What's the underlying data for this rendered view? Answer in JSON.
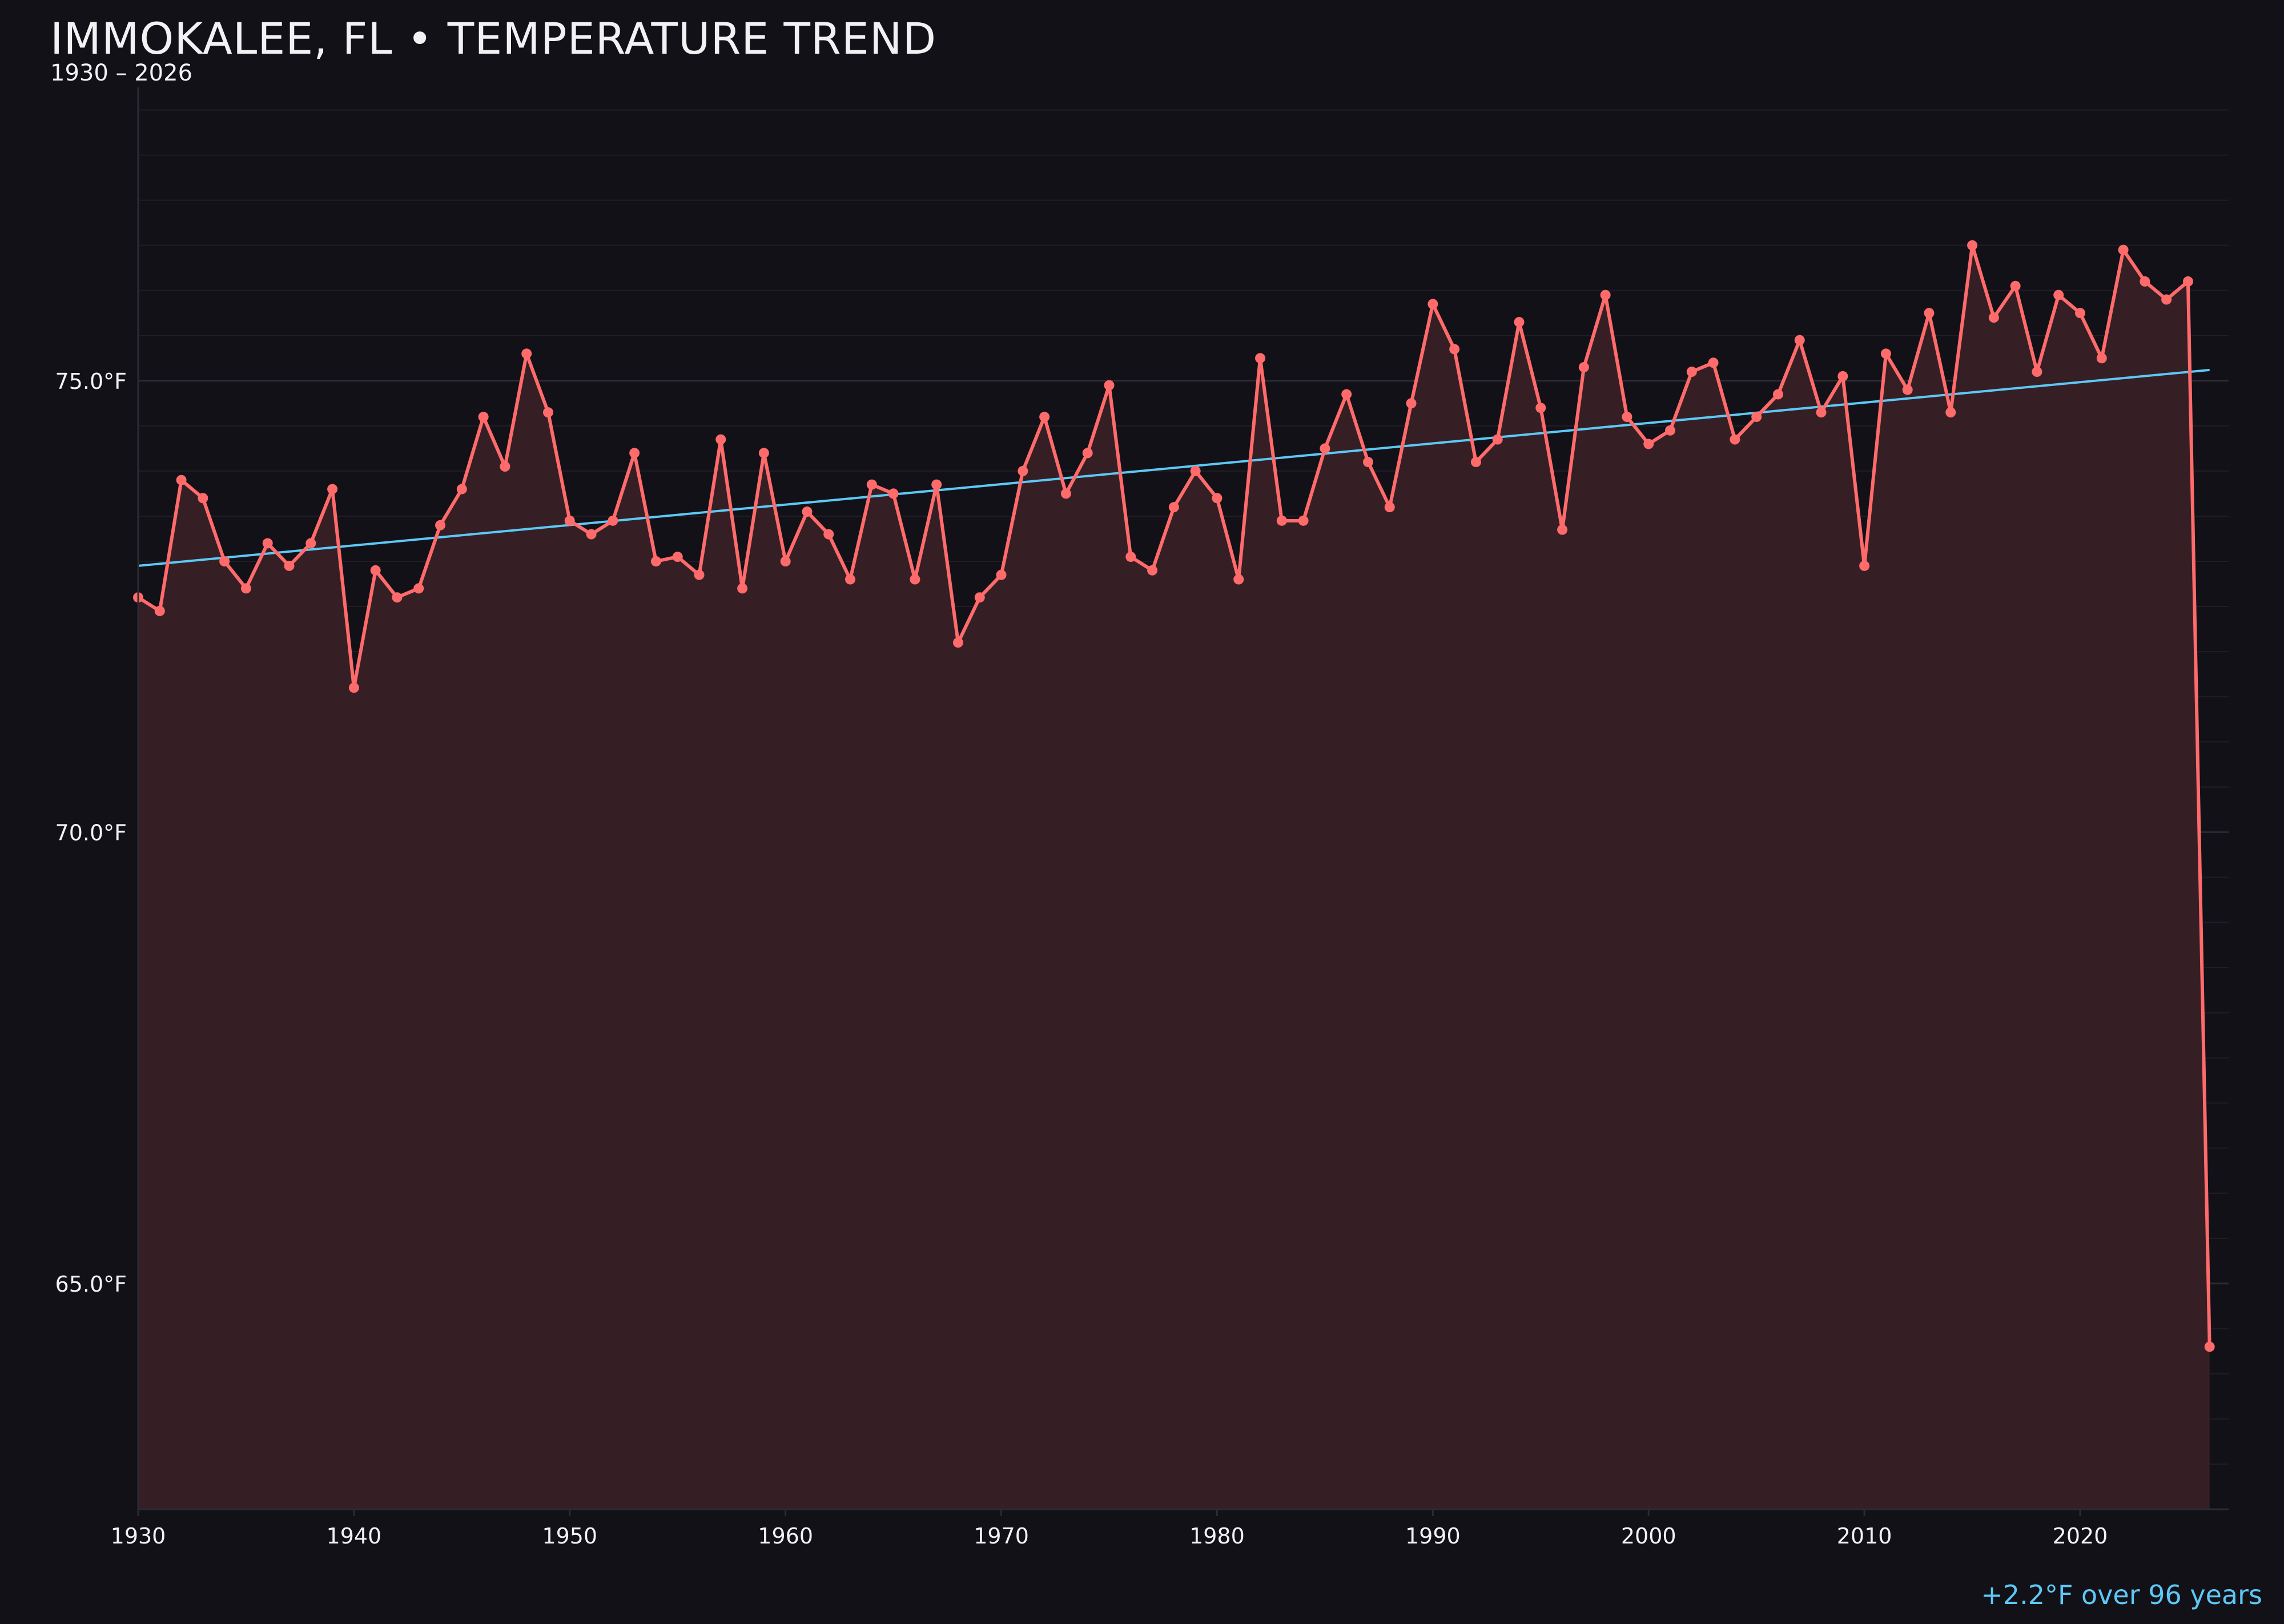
{
  "header": {
    "title": "IMMOKALEE, FL • TEMPERATURE TREND",
    "subtitle": "1930 – 2026"
  },
  "annotation": "+2.2°F over 96 years",
  "colors": {
    "background": "#121118",
    "series": "#ff6b6b",
    "fill": "#351f25",
    "trend": "#5ec8f5",
    "grid": "#2a242b",
    "text": "#f2f2f5"
  },
  "chart_data": {
    "type": "line",
    "title": "IMMOKALEE, FL • TEMPERATURE TREND",
    "subtitle": "1930 – 2026",
    "xlabel": "",
    "ylabel": "",
    "xlim": [
      1930,
      2027
    ],
    "ylim": [
      62.5,
      78.25
    ],
    "x_ticks": [
      1930,
      1940,
      1950,
      1960,
      1970,
      1980,
      1990,
      2000,
      2010,
      2020
    ],
    "x_tick_labels": [
      "1930",
      "1940",
      "1950",
      "1960",
      "1970",
      "1980",
      "1990",
      "2000",
      "2010",
      "2020"
    ],
    "y_ticks": [
      65,
      70,
      75
    ],
    "y_tick_labels": [
      "65.0°F",
      "70.0°F",
      "75.0°F"
    ],
    "grid": "horizontal, minor every 0.5°F",
    "area_fill": true,
    "x": [
      1930,
      1931,
      1932,
      1933,
      1934,
      1935,
      1936,
      1937,
      1938,
      1939,
      1940,
      1941,
      1942,
      1943,
      1944,
      1945,
      1946,
      1947,
      1948,
      1949,
      1950,
      1951,
      1952,
      1953,
      1954,
      1955,
      1956,
      1957,
      1958,
      1959,
      1960,
      1961,
      1962,
      1963,
      1964,
      1965,
      1966,
      1967,
      1968,
      1969,
      1970,
      1971,
      1972,
      1973,
      1974,
      1975,
      1976,
      1977,
      1978,
      1979,
      1980,
      1981,
      1982,
      1983,
      1984,
      1985,
      1986,
      1987,
      1988,
      1989,
      1990,
      1991,
      1992,
      1993,
      1994,
      1995,
      1996,
      1997,
      1998,
      1999,
      2000,
      2001,
      2002,
      2003,
      2004,
      2005,
      2006,
      2007,
      2008,
      2009,
      2010,
      2011,
      2012,
      2013,
      2014,
      2015,
      2016,
      2017,
      2018,
      2019,
      2020,
      2021,
      2022,
      2023,
      2024,
      2025,
      2026
    ],
    "values": [
      72.6,
      72.45,
      73.9,
      73.7,
      73.0,
      72.7,
      73.2,
      72.95,
      73.2,
      73.8,
      71.6,
      72.9,
      72.6,
      72.7,
      73.4,
      73.8,
      74.6,
      74.05,
      75.3,
      74.65,
      73.45,
      73.3,
      73.45,
      74.2,
      73.0,
      73.05,
      72.85,
      74.35,
      72.7,
      74.2,
      73.0,
      73.55,
      73.3,
      72.8,
      73.85,
      73.75,
      72.8,
      73.85,
      72.1,
      72.6,
      72.85,
      74.0,
      74.6,
      73.75,
      74.2,
      74.95,
      73.05,
      72.9,
      73.6,
      74.0,
      73.7,
      72.8,
      75.25,
      73.45,
      73.45,
      74.25,
      74.85,
      74.1,
      73.6,
      74.75,
      75.85,
      75.35,
      74.1,
      74.35,
      75.65,
      74.7,
      73.35,
      75.15,
      75.95,
      74.6,
      74.3,
      74.45,
      75.1,
      75.2,
      74.35,
      74.6,
      74.85,
      75.45,
      74.65,
      75.05,
      72.95,
      75.3,
      74.9,
      75.75,
      74.65,
      76.5,
      75.7,
      76.05,
      75.1,
      75.95,
      75.75,
      75.25,
      76.45,
      76.1,
      75.9,
      76.1,
      64.3
    ],
    "trend": {
      "x": [
        1930,
        2026
      ],
      "y": [
        72.95,
        75.12
      ]
    }
  }
}
